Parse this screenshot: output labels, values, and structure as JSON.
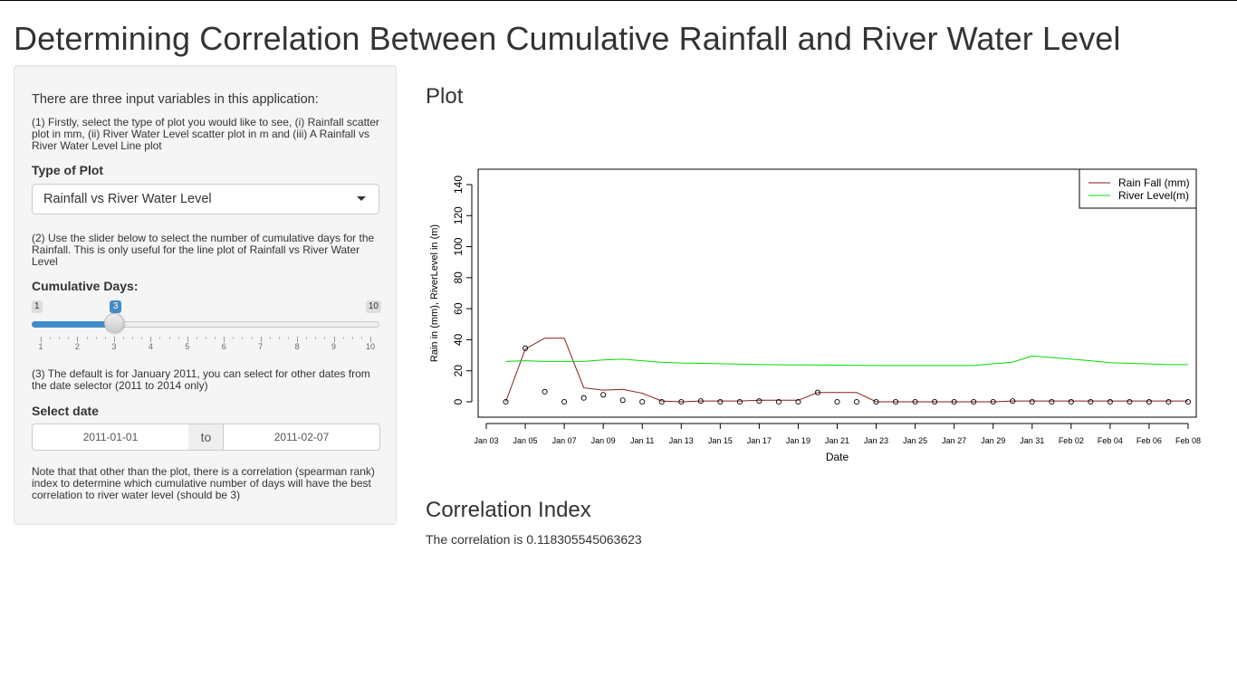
{
  "page_title": "Determining Correlation Between Cumulative Rainfall and River Water Level",
  "sidebar": {
    "intro": "There are three input variables in this application:",
    "step1": "(1) Firstly, select the type of plot you would like to see, (i) Rainfall scatter plot in mm, (ii) River Water Level scatter plot in m and (iii) A Rainfall vs River Water Level Line plot",
    "plot_type_label": "Type of Plot",
    "plot_type_value": "Rainfall vs River Water Level",
    "step2": "(2) Use the slider below to select the number of cumulative days for the Rainfall. This is only useful for the line plot of Rainfall vs River Water Level",
    "slider_label": "Cumulative Days:",
    "slider": {
      "min": 1,
      "max": 10,
      "value": 3,
      "min_label": "1",
      "max_label": "10",
      "value_label": "3",
      "ticks": [
        "1",
        "2",
        "3",
        "4",
        "5",
        "6",
        "7",
        "8",
        "9",
        "10"
      ]
    },
    "step3": "(3) The default is for January 2011, you can select for other dates from the date selector (2011 to 2014 only)",
    "date_label": "Select date",
    "date_start": "2011-01-01",
    "date_sep": "to",
    "date_end": "2011-02-07",
    "note": "Note that that other than the plot, there is a correlation (spearman rank) index to determine which cumulative number of days will have the best correlation to river water level (should be 3)"
  },
  "plot_heading": "Plot",
  "correlation_heading": "Correlation Index",
  "correlation_text": "The correlation is 0.118305545063623",
  "colors": {
    "rain_line": "#8b1a1a",
    "river_line": "#00dd00",
    "slider_blue": "#428bca"
  },
  "chart_data": {
    "type": "line",
    "xlabel": "Date",
    "ylabel": "Rain in (mm), RiverLevel in (m)",
    "ylim": [
      0,
      140
    ],
    "yticks": [
      "0",
      "20",
      "40",
      "60",
      "80",
      "100",
      "120",
      "140"
    ],
    "xlim": [
      "2011-01-03",
      "2011-02-08"
    ],
    "xticks": [
      "Jan 03",
      "Jan 05",
      "Jan 07",
      "Jan 09",
      "Jan 11",
      "Jan 13",
      "Jan 15",
      "Jan 17",
      "Jan 19",
      "Jan 21",
      "Jan 23",
      "Jan 25",
      "Jan 27",
      "Jan 29",
      "Jan 31",
      "Feb 02",
      "Feb 04",
      "Feb 06",
      "Feb 08"
    ],
    "legend_position": "top-right",
    "x": [
      "2011-01-04",
      "2011-01-05",
      "2011-01-06",
      "2011-01-07",
      "2011-01-08",
      "2011-01-09",
      "2011-01-10",
      "2011-01-11",
      "2011-01-12",
      "2011-01-13",
      "2011-01-14",
      "2011-01-15",
      "2011-01-16",
      "2011-01-17",
      "2011-01-18",
      "2011-01-19",
      "2011-01-20",
      "2011-01-21",
      "2011-01-22",
      "2011-01-23",
      "2011-01-24",
      "2011-01-25",
      "2011-01-26",
      "2011-01-27",
      "2011-01-28",
      "2011-01-29",
      "2011-01-30",
      "2011-01-31",
      "2011-02-01",
      "2011-02-02",
      "2011-02-03",
      "2011-02-04",
      "2011-02-05",
      "2011-02-06",
      "2011-02-07",
      "2011-02-08"
    ],
    "series": [
      {
        "name": "Rain Fall (mm)",
        "kind": "line",
        "values": [
          0,
          34,
          41,
          41,
          9,
          7.5,
          8,
          5.5,
          0.5,
          0,
          0.5,
          0.5,
          0.5,
          1,
          1,
          1,
          6,
          6,
          6,
          0,
          0,
          0,
          0,
          0,
          0,
          0,
          0.5,
          0.5,
          0.5,
          0.5,
          0.5,
          0.5,
          0.5,
          0.5,
          0.5,
          0.5
        ]
      },
      {
        "name": "River Level(m)",
        "kind": "line",
        "values": [
          26,
          26.5,
          26,
          26,
          26,
          27,
          27.5,
          26.5,
          25.5,
          25,
          24.8,
          24.6,
          24.3,
          24,
          23.9,
          23.8,
          23.7,
          23.6,
          23.5,
          23.4,
          23.4,
          23.4,
          23.4,
          23.4,
          23.4,
          24.5,
          25.5,
          29.5,
          28.5,
          27.5,
          26.5,
          25.2,
          24.8,
          24.4,
          24,
          24
        ]
      },
      {
        "kind": "scatter",
        "values": [
          0,
          34.5,
          6.5,
          0,
          2.5,
          4.5,
          1,
          0,
          0,
          0,
          0.5,
          0,
          0,
          0.5,
          0,
          0,
          6,
          0,
          0,
          0,
          0,
          0,
          0,
          0,
          0,
          0,
          0.5,
          0,
          0,
          0,
          0,
          0,
          0,
          0,
          0,
          0
        ]
      }
    ]
  }
}
